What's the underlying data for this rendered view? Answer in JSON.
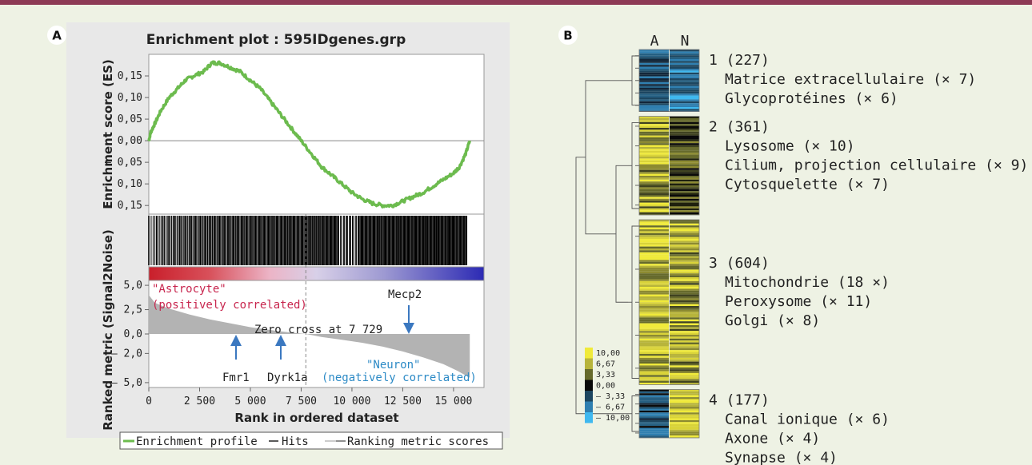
{
  "panel_a": {
    "letter": "A",
    "title": "Enrichment plot : 595IDgenes.grp",
    "es_ylabel": "Enrichment score (ES)",
    "rm_ylabel": "Ranked metric (Signal2Noise)",
    "xlabel": "Rank in ordered dataset",
    "legend": [
      "Enrichment profile",
      "Hits",
      "Ranking metric scores"
    ],
    "annotations": {
      "astrocyte_1": "\"Astrocyte\"",
      "astrocyte_2": "(positively correlated)",
      "neuron_1": "\"Neuron\"",
      "neuron_2": "(negatively correlated)",
      "zero_cross": "Zero cross at 7 729",
      "mecp2": "Mecp2",
      "fmr1": "Fmr1",
      "dyrk1a": "Dyrk1a"
    },
    "colors": {
      "es_line": "#6cbb4e",
      "metric_fill": "#b3b3b3",
      "astrocyte": "#c8264e",
      "neuron": "#2c8ac6",
      "arrow": "#3b78c0"
    }
  },
  "chart_data": [
    {
      "type": "line",
      "title": "Enrichment plot : 595IDgenes.grp",
      "ylabel": "Enrichment score (ES)",
      "xlim": [
        0,
        16500
      ],
      "ylim": [
        -0.17,
        0.2
      ],
      "yticks": [
        "0,15",
        "0,10",
        "0,05",
        "0,00",
        "– 0,05",
        "– 0,10",
        "– 0,15"
      ],
      "ytick_values": [
        0.15,
        0.1,
        0.05,
        0,
        -0.05,
        -0.1,
        -0.15
      ],
      "series": [
        {
          "name": "Enrichment profile",
          "x": [
            0,
            100,
            300,
            600,
            1000,
            1400,
            1800,
            2200,
            2700,
            3100,
            3500,
            4000,
            4500,
            5000,
            5500,
            6000,
            6500,
            7000,
            7500,
            8000,
            8500,
            9000,
            9500,
            10000,
            10500,
            11000,
            11500,
            12000,
            12500,
            13000,
            13500,
            14000,
            14500,
            15000,
            15300,
            15600,
            15800
          ],
          "y": [
            0.0,
            0.02,
            0.04,
            0.07,
            0.1,
            0.12,
            0.14,
            0.15,
            0.16,
            0.18,
            0.18,
            0.17,
            0.16,
            0.14,
            0.12,
            0.09,
            0.06,
            0.03,
            0.0,
            -0.03,
            -0.06,
            -0.08,
            -0.1,
            -0.12,
            -0.135,
            -0.145,
            -0.15,
            -0.15,
            -0.14,
            -0.13,
            -0.12,
            -0.105,
            -0.09,
            -0.075,
            -0.06,
            -0.03,
            0.0
          ]
        }
      ]
    },
    {
      "type": "area",
      "ylabel": "Ranked metric (Signal2Noise)",
      "xlabel": "Rank in ordered dataset",
      "xlim": [
        0,
        16500
      ],
      "ylim": [
        -5.5,
        5.5
      ],
      "xticks": [
        0,
        2500,
        5000,
        7500,
        10000,
        12500,
        15000
      ],
      "xtick_labels": [
        "0",
        "2 500",
        "5 000",
        "7 500",
        "10 000",
        "12 500",
        "15 000"
      ],
      "yticks": [
        "5,0",
        "2,5",
        "0,0",
        "– 2,0",
        "– 5,0"
      ],
      "ytick_values": [
        5,
        2.5,
        0,
        -2,
        -5
      ],
      "series": [
        {
          "name": "Ranking metric scores",
          "x": [
            0,
            300,
            1000,
            2000,
            3000,
            4000,
            5000,
            6000,
            7000,
            7729,
            8500,
            9500,
            10500,
            11500,
            12500,
            13500,
            14500,
            15200,
            15800
          ],
          "y": [
            4.0,
            3.2,
            2.6,
            2.0,
            1.5,
            1.1,
            0.7,
            0.4,
            0.15,
            0.0,
            -0.3,
            -0.6,
            -0.9,
            -1.3,
            -1.8,
            -2.4,
            -3.1,
            -3.8,
            -4.5
          ]
        }
      ]
    },
    {
      "type": "heatmap",
      "columns": [
        "A",
        "N"
      ],
      "scale": [
        "10,00",
        "6,67",
        "3,33",
        "0,00",
        "– 3,33",
        "– 6,67",
        "– 10,00"
      ],
      "scale_colors": [
        "#f0ea3a",
        "#b7b43b",
        "#666a2c",
        "#0a0a0a",
        "#1d4660",
        "#2f7fb0",
        "#3fb8ef"
      ],
      "clusters": [
        {
          "id": "1",
          "count": "(227)",
          "n": 227,
          "terms": [
            "Matrice extracellulaire (× 7)",
            "Glycoprotéines (× 6)"
          ]
        },
        {
          "id": "2",
          "count": "(361)",
          "n": 361,
          "terms": [
            "Lysosome (× 10)",
            "Cilium, projection cellulaire (× 9)",
            "Cytosquelette (× 7)"
          ]
        },
        {
          "id": "3",
          "count": "(604)",
          "n": 604,
          "terms": [
            "Mitochondrie (18 ×)",
            "Peroxysome (× 11)",
            "Golgi (× 8)"
          ]
        },
        {
          "id": "4",
          "count": "(177)",
          "n": 177,
          "terms": [
            "Canal ionique (× 6)",
            "Axone (× 4)",
            "Synapse (× 4)"
          ]
        }
      ]
    }
  ],
  "panel_b": {
    "letter": "B"
  }
}
